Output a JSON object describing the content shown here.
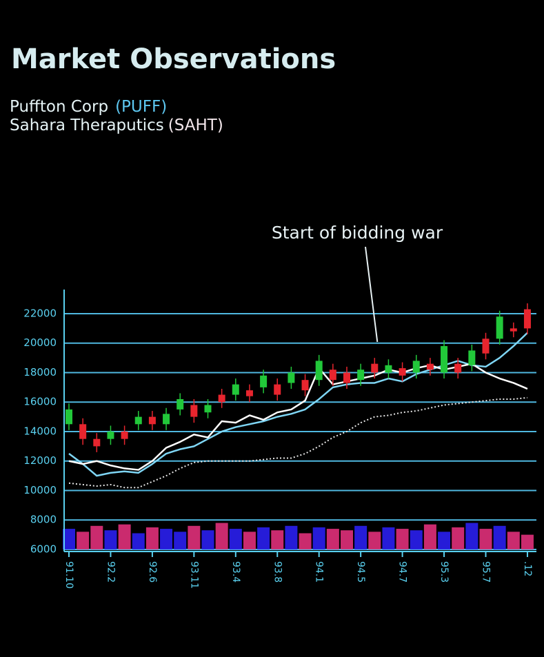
{
  "chart_data": {
    "type": "stock",
    "title": "Market Observations",
    "annotation": "Start of bidding war",
    "annotation_index": 22,
    "categories": [
      "91.10",
      null,
      null,
      "92.2",
      null,
      null,
      "92.6",
      null,
      null,
      "93.11",
      null,
      null,
      "93.4",
      null,
      null,
      "93.8",
      null,
      null,
      "94.1",
      null,
      null,
      "94.5",
      null,
      null,
      "94.7",
      null,
      null,
      "95.3",
      null,
      null,
      "95.7",
      null,
      null,
      ".12"
    ],
    "ylim": [
      6000,
      23000
    ],
    "yticks": [
      6000,
      8000,
      10000,
      12000,
      14000,
      16000,
      18000,
      20000,
      22000
    ],
    "grid": true,
    "grid_color": "#4fb8e0",
    "axis_color": "#5ad1f0",
    "series": [
      {
        "name": "Puffton Corp",
        "ticker": "(PUFF)",
        "color": "#7fd6f5",
        "values": [
          12500,
          11800,
          11000,
          11200,
          11300,
          11200,
          11800,
          12500,
          12800,
          13000,
          13500,
          14000,
          14300,
          14500,
          14700,
          15000,
          15200,
          15500,
          16200,
          17000,
          17200,
          17300,
          17300,
          17600,
          17400,
          17900,
          18200,
          18500,
          18800,
          18500,
          18400,
          19000,
          19800,
          20700
        ]
      },
      {
        "name": "Sahara Theraputics",
        "ticker": "(SAHT)",
        "color": "#ffffff",
        "values": [
          12000,
          11800,
          12000,
          11700,
          11500,
          11400,
          12000,
          12900,
          13300,
          13800,
          13600,
          14700,
          14600,
          15100,
          14800,
          15300,
          15500,
          16100,
          18300,
          17200,
          17400,
          17600,
          17800,
          18200,
          18000,
          18300,
          18500,
          18200,
          18400,
          18600,
          18000,
          17600,
          17300,
          16900
        ]
      },
      {
        "color": "#e8e8e8",
        "dashed": true,
        "values": [
          10500,
          10400,
          10300,
          10400,
          10200,
          10200,
          10600,
          11000,
          11500,
          11900,
          12000,
          12000,
          12000,
          12000,
          12100,
          12200,
          12200,
          12500,
          13000,
          13600,
          14000,
          14600,
          15000,
          15100,
          15300,
          15400,
          15600,
          15800,
          15900,
          16000,
          16100,
          16200,
          16200,
          16300
        ]
      }
    ],
    "candles": {
      "up_color": "#22c83a",
      "down_color": "#e8252e",
      "open": [
        14500,
        14500,
        13500,
        13500,
        14000,
        14500,
        15000,
        14500,
        15500,
        15800,
        15300,
        16500,
        16500,
        16800,
        17000,
        17200,
        17300,
        17500,
        17500,
        18200,
        18000,
        17500,
        18600,
        18000,
        18300,
        18000,
        18600,
        18000,
        18600,
        18500,
        20300,
        20300,
        21000,
        22300
      ],
      "close": [
        15500,
        13500,
        13000,
        14000,
        13500,
        15000,
        14500,
        15200,
        16200,
        15000,
        15800,
        16000,
        17200,
        16400,
        17800,
        16500,
        18000,
        16800,
        18800,
        17500,
        17300,
        18200,
        18000,
        18500,
        17800,
        18800,
        18200,
        19800,
        18000,
        19500,
        19300,
        21800,
        20800,
        21000
      ],
      "high": [
        15900,
        14900,
        13900,
        14400,
        14400,
        15400,
        15400,
        15600,
        16600,
        16200,
        16200,
        16900,
        17600,
        17200,
        18200,
        17600,
        18400,
        17900,
        19200,
        18600,
        18400,
        18600,
        19000,
        18900,
        18700,
        19200,
        19000,
        20200,
        19000,
        19900,
        20700,
        22200,
        21400,
        22700
      ],
      "low": [
        14100,
        13100,
        12600,
        13100,
        13100,
        14100,
        14100,
        14100,
        15100,
        14600,
        14900,
        15600,
        16100,
        16000,
        16600,
        16100,
        16900,
        16400,
        17100,
        17100,
        16900,
        17100,
        17600,
        17600,
        17400,
        17600,
        17800,
        17600,
        17600,
        18100,
        18900,
        19900,
        20400,
        20600
      ]
    },
    "volume": {
      "color": "#2a1ff0",
      "down_color": "#e0307a",
      "values": [
        7400,
        7200,
        7600,
        7300,
        7700,
        7100,
        7500,
        7400,
        7200,
        7600,
        7300,
        7800,
        7400,
        7200,
        7500,
        7300,
        7600,
        7100,
        7500,
        7400,
        7300,
        7600,
        7200,
        7500,
        7400,
        7300,
        7700,
        7200,
        7500,
        7800,
        7400,
        7600,
        7200,
        7000
      ]
    }
  }
}
